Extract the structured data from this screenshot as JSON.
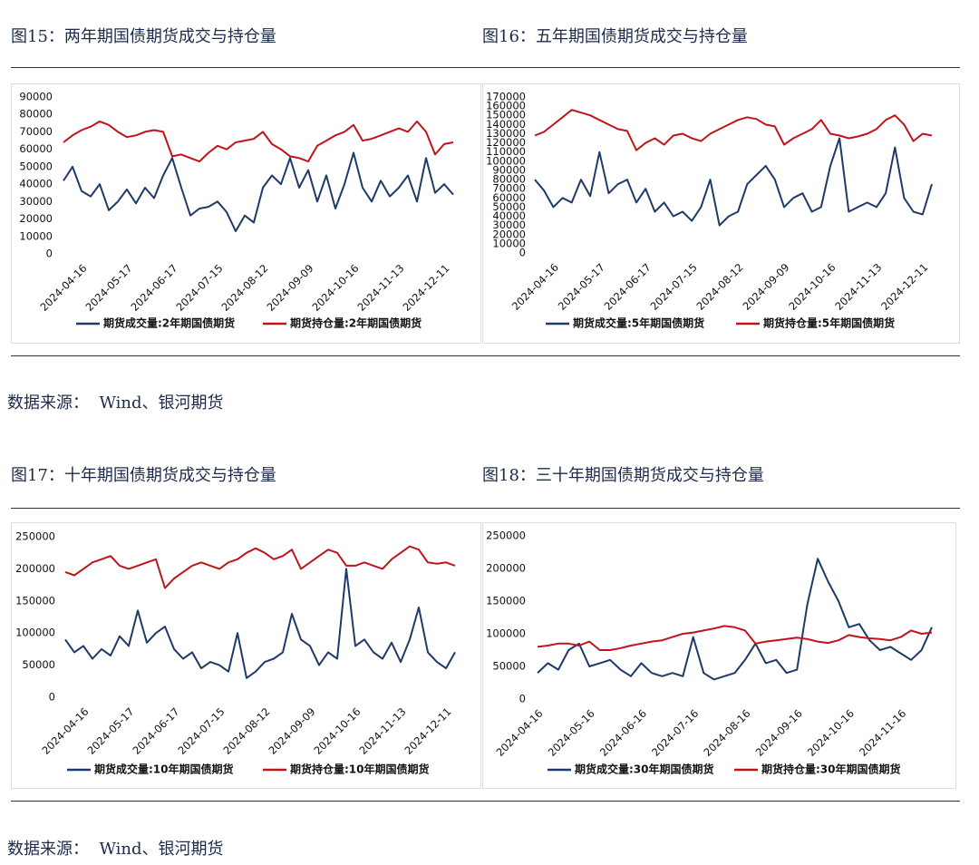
{
  "chart_data": [
    {
      "type": "line",
      "title": "图15：两年期国债期货成交与持仓量",
      "categories": [
        null,
        null,
        "2024-04-16",
        null,
        null,
        null,
        null,
        "2024-05-17",
        null,
        null,
        null,
        null,
        "2024-06-17",
        null,
        null,
        null,
        null,
        "2024-07-15",
        null,
        null,
        null,
        null,
        "2024-08-12",
        null,
        null,
        null,
        null,
        "2024-09-09",
        null,
        null,
        null,
        null,
        "2024-10-16",
        null,
        null,
        null,
        null,
        "2024-11-13",
        null,
        null,
        null,
        null,
        "2024-12-11",
        null
      ],
      "ylim": [
        0,
        90000
      ],
      "yticks": [
        0,
        10000,
        20000,
        30000,
        40000,
        50000,
        60000,
        70000,
        80000,
        90000
      ],
      "grid": false,
      "legend": "bottom",
      "series": [
        {
          "name": "期货成交量:2年期国债期货",
          "color": "#1f3a68",
          "values": [
            42000,
            50000,
            36000,
            33000,
            40000,
            25000,
            30000,
            37000,
            29000,
            38000,
            32000,
            45000,
            55000,
            38000,
            22000,
            26000,
            27000,
            30000,
            24000,
            13000,
            22000,
            18000,
            38000,
            45000,
            40000,
            55000,
            38000,
            48000,
            30000,
            45000,
            26000,
            40000,
            58000,
            38000,
            30000,
            42000,
            33000,
            38000,
            45000,
            30000,
            55000,
            35000,
            40000,
            34000
          ]
        },
        {
          "name": "期货持仓量:2年期国债期货",
          "color": "#c0141c",
          "values": [
            64000,
            68000,
            71000,
            73000,
            76000,
            74000,
            70000,
            67000,
            68000,
            70000,
            71000,
            70000,
            56000,
            57000,
            55000,
            53000,
            58000,
            62000,
            60000,
            64000,
            65000,
            66000,
            70000,
            63000,
            60000,
            56000,
            55000,
            53000,
            62000,
            65000,
            68000,
            70000,
            74000,
            65000,
            66000,
            68000,
            70000,
            72000,
            70000,
            76000,
            70000,
            57000,
            63000,
            64000
          ]
        }
      ]
    },
    {
      "type": "line",
      "title": "图16：五年期国债期货成交与持仓量",
      "categories": [
        null,
        null,
        "2024-04-16",
        null,
        null,
        null,
        null,
        "2024-05-17",
        null,
        null,
        null,
        null,
        "2024-06-17",
        null,
        null,
        null,
        null,
        "2024-07-15",
        null,
        null,
        null,
        null,
        "2024-08-12",
        null,
        null,
        null,
        null,
        "2024-09-09",
        null,
        null,
        null,
        null,
        "2024-10-16",
        null,
        null,
        null,
        null,
        "2024-11-13",
        null,
        null,
        null,
        null,
        "2024-12-11",
        null
      ],
      "ylim": [
        0,
        170000
      ],
      "yticks": [
        0,
        10000,
        20000,
        30000,
        40000,
        50000,
        60000,
        70000,
        80000,
        90000,
        100000,
        110000,
        120000,
        130000,
        140000,
        150000,
        160000,
        170000
      ],
      "grid": false,
      "legend": "bottom",
      "series": [
        {
          "name": "期货成交量:5年期国债期货",
          "color": "#1f3a68",
          "values": [
            80000,
            68000,
            50000,
            60000,
            55000,
            80000,
            62000,
            110000,
            65000,
            75000,
            80000,
            55000,
            70000,
            45000,
            55000,
            40000,
            45000,
            35000,
            50000,
            80000,
            30000,
            40000,
            45000,
            75000,
            85000,
            95000,
            80000,
            50000,
            60000,
            65000,
            45000,
            50000,
            95000,
            125000,
            45000,
            50000,
            55000,
            50000,
            65000,
            115000,
            60000,
            45000,
            42000,
            75000
          ]
        },
        {
          "name": "期货持仓量:5年期国债期货",
          "color": "#c0141c",
          "values": [
            128000,
            132000,
            140000,
            148000,
            156000,
            153000,
            150000,
            145000,
            140000,
            135000,
            133000,
            112000,
            120000,
            125000,
            118000,
            128000,
            130000,
            125000,
            122000,
            130000,
            135000,
            140000,
            145000,
            148000,
            146000,
            140000,
            138000,
            118000,
            125000,
            130000,
            135000,
            145000,
            130000,
            128000,
            125000,
            127000,
            130000,
            135000,
            145000,
            150000,
            140000,
            122000,
            130000,
            128000
          ]
        }
      ]
    },
    {
      "type": "line",
      "title": "图17：十年期国债期货成交与持仓量",
      "categories": [
        null,
        null,
        "2024-04-16",
        null,
        null,
        null,
        null,
        "2024-05-17",
        null,
        null,
        null,
        null,
        "2024-06-17",
        null,
        null,
        null,
        null,
        "2024-07-15",
        null,
        null,
        null,
        null,
        "2024-08-12",
        null,
        null,
        null,
        null,
        "2024-09-09",
        null,
        null,
        null,
        null,
        "2024-10-16",
        null,
        null,
        null,
        null,
        "2024-11-13",
        null,
        null,
        null,
        null,
        "2024-12-11",
        null
      ],
      "ylim": [
        0,
        250000
      ],
      "yticks": [
        0,
        50000,
        100000,
        150000,
        200000,
        250000
      ],
      "grid": false,
      "legend": "bottom",
      "series": [
        {
          "name": "期货成交量:10年期国债期货",
          "color": "#1f3a68",
          "values": [
            90000,
            70000,
            80000,
            60000,
            75000,
            65000,
            95000,
            80000,
            135000,
            85000,
            100000,
            110000,
            75000,
            60000,
            70000,
            45000,
            55000,
            50000,
            40000,
            100000,
            30000,
            40000,
            55000,
            60000,
            70000,
            130000,
            90000,
            80000,
            50000,
            70000,
            60000,
            200000,
            80000,
            90000,
            70000,
            60000,
            85000,
            55000,
            90000,
            140000,
            70000,
            55000,
            45000,
            70000
          ]
        },
        {
          "name": "期货持仓量:10年期国债期货",
          "color": "#c0141c",
          "values": [
            195000,
            190000,
            200000,
            210000,
            215000,
            220000,
            205000,
            200000,
            205000,
            210000,
            215000,
            170000,
            185000,
            195000,
            205000,
            210000,
            205000,
            200000,
            210000,
            215000,
            225000,
            232000,
            225000,
            215000,
            220000,
            230000,
            200000,
            210000,
            220000,
            230000,
            225000,
            205000,
            205000,
            210000,
            205000,
            200000,
            215000,
            225000,
            235000,
            230000,
            210000,
            208000,
            210000,
            205000
          ]
        }
      ]
    },
    {
      "type": "line",
      "title": "图18：三十年期国债期货成交与持仓量",
      "categories": [
        "2024-04-16",
        null,
        null,
        null,
        null,
        "2024-05-16",
        null,
        null,
        null,
        null,
        "2024-06-16",
        null,
        null,
        null,
        null,
        "2024-07-16",
        null,
        null,
        null,
        null,
        "2024-08-16",
        null,
        null,
        null,
        null,
        "2024-09-16",
        null,
        null,
        null,
        null,
        "2024-10-16",
        null,
        null,
        null,
        null,
        "2024-11-16",
        null,
        null,
        null
      ],
      "ylim": [
        0,
        250000
      ],
      "yticks": [
        0,
        50000,
        100000,
        150000,
        200000,
        250000
      ],
      "grid": false,
      "legend": "bottom",
      "series": [
        {
          "name": "期货成交量:30年期国债期货",
          "color": "#1f3a68",
          "values": [
            40000,
            55000,
            45000,
            75000,
            85000,
            50000,
            55000,
            60000,
            45000,
            35000,
            55000,
            40000,
            35000,
            40000,
            35000,
            95000,
            40000,
            30000,
            35000,
            40000,
            60000,
            85000,
            55000,
            60000,
            40000,
            45000,
            145000,
            215000,
            180000,
            150000,
            110000,
            115000,
            90000,
            75000,
            80000,
            70000,
            60000,
            75000,
            110000
          ]
        },
        {
          "name": "期货持仓量:30年期国债期货",
          "color": "#c0141c",
          "values": [
            80000,
            82000,
            85000,
            85000,
            82000,
            88000,
            75000,
            75000,
            78000,
            82000,
            85000,
            88000,
            90000,
            95000,
            100000,
            102000,
            105000,
            108000,
            112000,
            110000,
            105000,
            85000,
            88000,
            90000,
            92000,
            94000,
            92000,
            88000,
            86000,
            90000,
            98000,
            95000,
            93000,
            92000,
            90000,
            95000,
            105000,
            100000,
            102000
          ]
        }
      ]
    }
  ],
  "sources": [
    "数据来源：  Wind、银河期货",
    "数据来源：  Wind、银河期货"
  ]
}
